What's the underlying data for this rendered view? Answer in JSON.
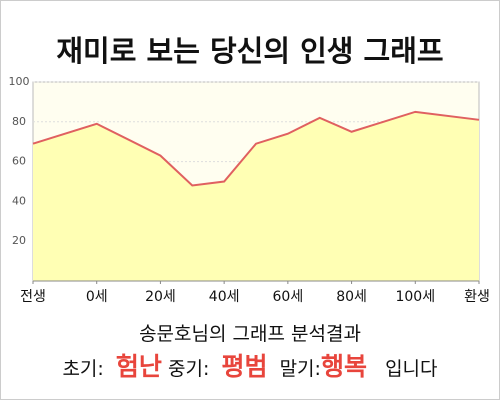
{
  "chart_data": {
    "type": "area",
    "title": "재미로 보는 당신의 인생 그래프",
    "series": [
      {
        "color": "#e06060",
        "fill": "#ffffb4",
        "x": [
          -20,
          0,
          20,
          30,
          40,
          50,
          60,
          70,
          80,
          90,
          100,
          120
        ],
        "values": [
          69,
          79,
          63,
          48,
          50,
          69,
          74,
          82,
          75,
          80,
          85,
          81
        ]
      }
    ],
    "xlim": [
      -20,
      120
    ],
    "xticks": [
      {
        "value": -20,
        "label": "전생"
      },
      {
        "value": 0,
        "label": "0세"
      },
      {
        "value": 20,
        "label": "20세"
      },
      {
        "value": 40,
        "label": "40세"
      },
      {
        "value": 60,
        "label": "60세"
      },
      {
        "value": 80,
        "label": "80세"
      },
      {
        "value": 100,
        "label": "100세"
      },
      {
        "value": 120,
        "label": "환생"
      }
    ],
    "ylim": [
      0,
      100
    ],
    "yticks": [
      20,
      40,
      60,
      80,
      100
    ],
    "grid": true
  },
  "analysis": {
    "heading": "송문호님의 그래프 분석결과",
    "early_label": "초기:",
    "early": "험난",
    "mid_label": "중기:",
    "mid": "평범",
    "late_label": "말기:",
    "late": "행복",
    "ending": "입니다"
  }
}
